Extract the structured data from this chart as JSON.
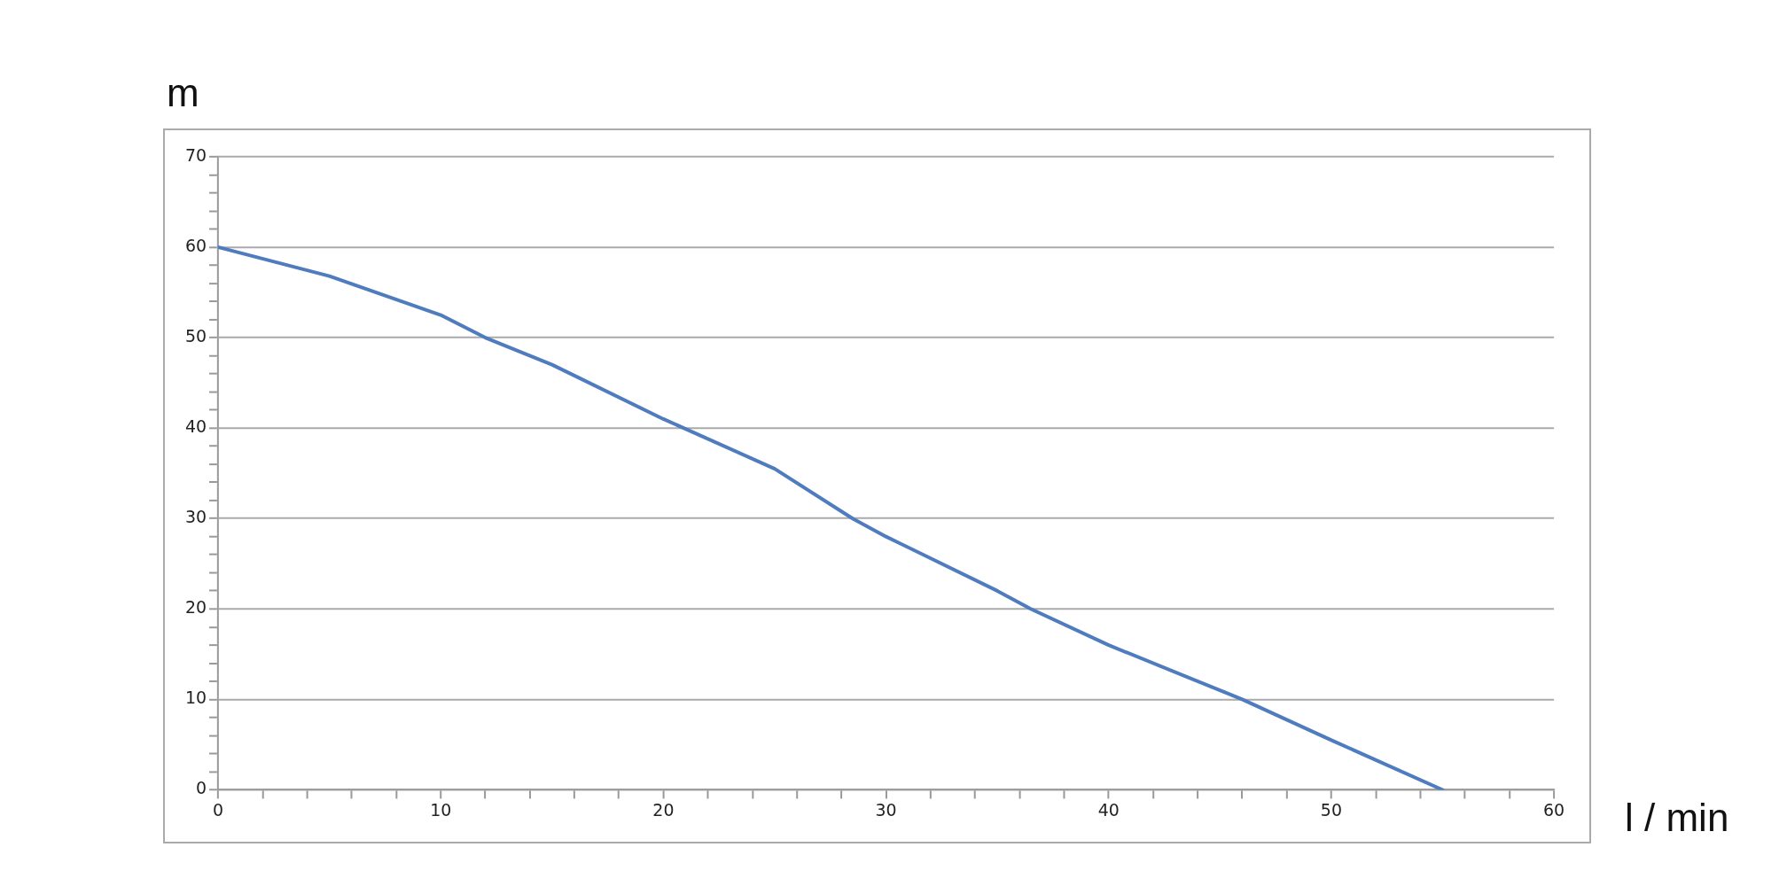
{
  "chart_data": {
    "type": "line",
    "xlabel": "l / min",
    "ylabel": "m",
    "x": [
      0,
      5,
      10,
      12,
      15,
      20,
      25,
      28.5,
      30,
      35,
      36.5,
      40,
      45,
      46,
      50,
      55
    ],
    "series": [
      {
        "color": "#4f7bbf",
        "values": [
          60,
          56.8,
          52.5,
          50,
          47,
          41,
          35.5,
          30,
          28,
          22,
          20,
          16,
          11,
          10,
          5.5,
          0
        ]
      }
    ],
    "xlim": [
      0,
      60
    ],
    "ylim": [
      0,
      70
    ],
    "xticks": [
      0,
      {
        "value": 2,
        "label": null
      },
      {
        "value": 4,
        "label": null
      },
      {
        "value": 6,
        "label": null
      },
      {
        "value": 8,
        "label": null
      },
      10,
      {
        "value": 12,
        "label": null
      },
      {
        "value": 14,
        "label": null
      },
      {
        "value": 16,
        "label": null
      },
      {
        "value": 18,
        "label": null
      },
      20,
      {
        "value": 22,
        "label": null
      },
      {
        "value": 24,
        "label": null
      },
      {
        "value": 26,
        "label": null
      },
      {
        "value": 28,
        "label": null
      },
      30,
      {
        "value": 32,
        "label": null
      },
      {
        "value": 34,
        "label": null
      },
      {
        "value": 36,
        "label": null
      },
      {
        "value": 38,
        "label": null
      },
      40,
      {
        "value": 42,
        "label": null
      },
      {
        "value": 44,
        "label": null
      },
      {
        "value": 46,
        "label": null
      },
      {
        "value": 48,
        "label": null
      },
      50,
      {
        "value": 52,
        "label": null
      },
      {
        "value": 54,
        "label": null
      },
      {
        "value": 56,
        "label": null
      },
      {
        "value": 58,
        "label": null
      },
      60
    ],
    "yticks": [
      0,
      {
        "value": 2,
        "label": null
      },
      {
        "value": 4,
        "label": null
      },
      {
        "value": 6,
        "label": null
      },
      {
        "value": 8,
        "label": null
      },
      10,
      {
        "value": 12,
        "label": null
      },
      {
        "value": 14,
        "label": null
      },
      {
        "value": 16,
        "label": null
      },
      {
        "value": 18,
        "label": null
      },
      20,
      {
        "value": 22,
        "label": null
      },
      {
        "value": 24,
        "label": null
      },
      {
        "value": 26,
        "label": null
      },
      {
        "value": 28,
        "label": null
      },
      30,
      {
        "value": 32,
        "label": null
      },
      {
        "value": 34,
        "label": null
      },
      {
        "value": 36,
        "label": null
      },
      {
        "value": 38,
        "label": null
      },
      40,
      {
        "value": 42,
        "label": null
      },
      {
        "value": 44,
        "label": null
      },
      {
        "value": 46,
        "label": null
      },
      {
        "value": 48,
        "label": null
      },
      50,
      {
        "value": 52,
        "label": null
      },
      {
        "value": 54,
        "label": null
      },
      {
        "value": 56,
        "label": null
      },
      {
        "value": 58,
        "label": null
      },
      60,
      {
        "value": 62,
        "label": null
      },
      {
        "value": 64,
        "label": null
      },
      {
        "value": 66,
        "label": null
      },
      {
        "value": 68,
        "label": null
      },
      70
    ],
    "grid": "y",
    "legend": false,
    "marker": "none",
    "line_style": "solid"
  }
}
